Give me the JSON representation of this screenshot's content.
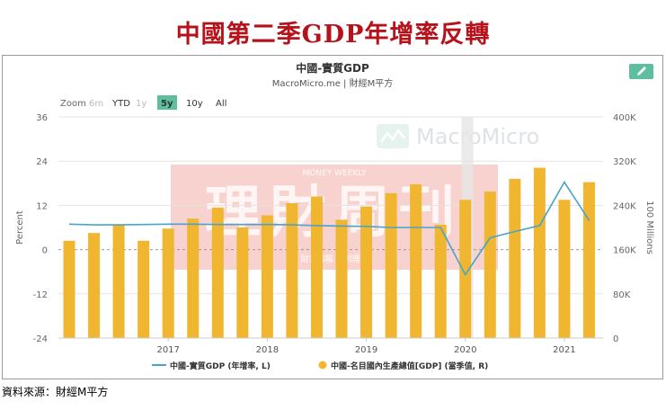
{
  "page": {
    "headline": "中國第二季GDP年增率反轉",
    "source_note": "資料來源：財經M平方"
  },
  "toolbar": {
    "zoom_label": "Zoom",
    "ranges": [
      {
        "label": "6m",
        "state": "disabled"
      },
      {
        "label": "YTD",
        "state": "normal"
      },
      {
        "label": "1y",
        "state": "disabled"
      },
      {
        "label": "5y",
        "state": "selected"
      },
      {
        "label": "10y",
        "state": "normal"
      },
      {
        "label": "All",
        "state": "normal"
      }
    ],
    "edit_icon": "pencil-icon",
    "accent": "#5dbf9f"
  },
  "watermarks": {
    "macromicro": "MacroMicro",
    "money_weekly_en": "MONEY WEEKLY",
    "money_weekly_zh": "理財周刊",
    "money_weekly_small": "財富播報 聰明理財"
  },
  "chart_data": {
    "type": "bar+line",
    "title": "中國-實質GDP",
    "subtitle": "MacroMicro.me | 財經M平方",
    "ylabel_left": "Percent",
    "ylabel_right": "100 Millions",
    "ylim_left": [
      -24,
      36
    ],
    "yticks_left": [
      -24,
      -12,
      0,
      12,
      24,
      36
    ],
    "ylim_right": [
      0,
      400000
    ],
    "yticks_right": [
      "0",
      "80K",
      "160K",
      "240K",
      "320K",
      "400K"
    ],
    "yticks_right_values": [
      0,
      80000,
      160000,
      240000,
      320000,
      400000
    ],
    "xlim": [
      2016.0,
      2021.5
    ],
    "xticks": [
      2017,
      2018,
      2019,
      2020,
      2021
    ],
    "x_tick_labels": [
      "2017",
      "2018",
      "2019",
      "2020",
      "2021"
    ],
    "grid": true,
    "legend_position": "bottom",
    "highlight_band": [
      2020.07,
      2020.19
    ],
    "series": [
      {
        "name": "中國-實質GDP (年增率, L)",
        "axis": "left",
        "style": "line",
        "color": "#4aa3c8",
        "x": [
          2016.0,
          2016.25,
          2016.5,
          2016.75,
          2017.0,
          2017.25,
          2017.5,
          2017.75,
          2018.0,
          2018.25,
          2018.5,
          2018.75,
          2019.0,
          2019.25,
          2019.5,
          2019.75,
          2020.0,
          2020.25,
          2020.5,
          2020.75,
          2021.0,
          2021.25
        ],
        "values": [
          6.9,
          6.7,
          6.7,
          6.8,
          6.9,
          6.9,
          6.8,
          6.8,
          6.8,
          6.7,
          6.5,
          6.4,
          6.3,
          6.0,
          6.0,
          6.0,
          -6.8,
          3.2,
          4.9,
          6.5,
          18.3,
          7.9
        ]
      },
      {
        "name": "中國-名目國內生產總值[GDP] (當季值, R)",
        "axis": "right",
        "style": "bar",
        "color": "#f0b62f",
        "x": [
          2016.0,
          2016.25,
          2016.5,
          2016.75,
          2017.0,
          2017.25,
          2017.5,
          2017.75,
          2018.0,
          2018.25,
          2018.5,
          2018.75,
          2019.0,
          2019.25,
          2019.5,
          2019.75,
          2020.0,
          2020.25,
          2020.5,
          2020.75,
          2021.0,
          2021.25
        ],
        "values": [
          176000,
          190000,
          204000,
          176000,
          198000,
          216000,
          236000,
          200000,
          222000,
          244000,
          256000,
          214000,
          238000,
          262000,
          278000,
          205000,
          250000,
          265000,
          288000,
          308000,
          250000,
          282000
        ]
      }
    ]
  }
}
